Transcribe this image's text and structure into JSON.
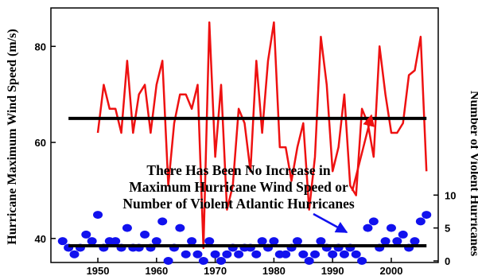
{
  "chart_data": {
    "type": "line",
    "x_ticks": [
      1950,
      1960,
      1970,
      1980,
      1990,
      2000
    ],
    "xlim": [
      1942,
      2008
    ],
    "left_axis": {
      "label": "Hurricane Maximum Wind Speed (m/s)",
      "ticks": [
        40,
        60,
        80
      ],
      "ylim": [
        35,
        88
      ]
    },
    "right_axis": {
      "label": "Number of Violent Hurricanes",
      "ticks": [
        0,
        5,
        10
      ],
      "ylim": [
        0,
        11
      ]
    },
    "series": [
      {
        "axis": "left",
        "style": "line",
        "color": "#ee1111",
        "x": [
          1950,
          1951,
          1952,
          1953,
          1954,
          1955,
          1956,
          1957,
          1958,
          1959,
          1960,
          1961,
          1962,
          1963,
          1964,
          1965,
          1966,
          1967,
          1968,
          1969,
          1970,
          1971,
          1972,
          1973,
          1974,
          1975,
          1976,
          1977,
          1978,
          1979,
          1980,
          1981,
          1982,
          1983,
          1984,
          1985,
          1986,
          1987,
          1988,
          1989,
          1990,
          1991,
          1992,
          1993,
          1994,
          1995,
          1996,
          1997,
          1998,
          1999,
          2000,
          2001,
          2002,
          2003,
          2004,
          2005,
          2006
        ],
        "y": [
          62,
          72,
          67,
          67,
          62,
          77,
          62,
          70,
          72,
          62,
          72,
          77,
          51,
          64,
          70,
          70,
          67,
          72,
          38,
          85,
          57,
          72,
          46,
          51,
          67,
          64,
          54,
          77,
          62,
          77,
          85,
          59,
          59,
          52,
          59,
          64,
          46,
          57,
          82,
          72,
          54,
          59,
          70,
          51,
          49,
          67,
          64,
          57,
          80,
          70,
          62,
          62,
          64,
          74,
          75,
          82,
          54
        ]
      },
      {
        "axis": "left",
        "style": "reference-line",
        "color": "#000000",
        "x": [
          1945,
          2006
        ],
        "y": [
          65,
          65
        ]
      },
      {
        "axis": "right",
        "style": "scatter",
        "color": "#1111ee",
        "x": [
          1944,
          1945,
          1946,
          1947,
          1948,
          1949,
          1950,
          1951,
          1952,
          1953,
          1954,
          1955,
          1956,
          1957,
          1958,
          1959,
          1960,
          1961,
          1962,
          1963,
          1964,
          1965,
          1966,
          1967,
          1968,
          1969,
          1970,
          1971,
          1972,
          1973,
          1974,
          1975,
          1976,
          1977,
          1978,
          1979,
          1980,
          1981,
          1982,
          1983,
          1984,
          1985,
          1986,
          1987,
          1988,
          1989,
          1990,
          1991,
          1992,
          1993,
          1994,
          1995,
          1996,
          1997,
          1998,
          1999,
          2000,
          2001,
          2002,
          2003,
          2004,
          2005,
          2006
        ],
        "y": [
          3,
          2,
          1,
          2,
          4,
          3,
          7,
          2,
          3,
          3,
          2,
          5,
          2,
          2,
          4,
          2,
          3,
          6,
          0,
          2,
          5,
          1,
          3,
          1,
          0,
          3,
          1,
          0,
          1,
          2,
          1,
          2,
          2,
          1,
          3,
          2,
          3,
          1,
          1,
          2,
          3,
          1,
          0,
          1,
          3,
          2,
          1,
          2,
          1,
          2,
          1,
          0,
          5,
          6,
          2,
          3,
          5,
          3,
          4,
          2,
          3,
          6,
          7
        ]
      },
      {
        "axis": "right",
        "style": "reference-line",
        "color": "#000000",
        "x": [
          1945,
          2006
        ],
        "y": [
          2.3,
          2.3
        ]
      }
    ],
    "annotation": {
      "lines": [
        "There Has Been No Increase in",
        "Maximum Hurricane Wind Speed or",
        "Number of Violent Atlantic Hurricanes"
      ],
      "arrow_color_red": "#ee1111",
      "arrow_color_blue": "#1111ee"
    }
  }
}
